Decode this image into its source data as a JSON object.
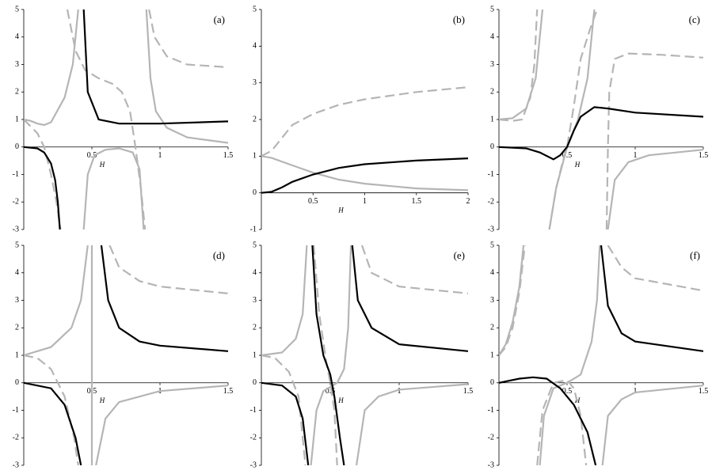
{
  "chart_data": [
    {
      "type": "line",
      "label": "(a)",
      "xlabel": "H",
      "xlim": [
        0,
        1.5
      ],
      "ylim": [
        -3,
        5
      ],
      "xticks": [
        0.5,
        1,
        1.5
      ],
      "yticks": [
        -3,
        -2,
        -1,
        0,
        1,
        2,
        3,
        4,
        5
      ],
      "series": [
        {
          "color": "#b5b5b5",
          "dash": false,
          "x": [
            0,
            0.05,
            0.1,
            0.15,
            0.2,
            0.3,
            0.36,
            0.4,
            null,
            0.44,
            0.47,
            0.52,
            0.6,
            0.7,
            0.8,
            0.85,
            0.88,
            null,
            0.9,
            0.93,
            0.97,
            1.05,
            1.2,
            1.5
          ],
          "values": [
            1,
            0.95,
            0.85,
            0.8,
            0.9,
            1.8,
            3,
            5,
            null,
            -3,
            -1,
            -0.3,
            -0.1,
            -0.05,
            -0.2,
            -0.8,
            -3,
            null,
            5,
            2.5,
            1.3,
            0.7,
            0.35,
            0.15
          ]
        },
        {
          "color": "#b5b5b5",
          "dash": true,
          "x": [
            0,
            0.1,
            0.15,
            0.2,
            0.24,
            0.27,
            null,
            0.32,
            0.38,
            0.45,
            0.55,
            0.65,
            0.72,
            0.78,
            0.82,
            0.86,
            0.89,
            null,
            0.92,
            0.96,
            1.05,
            1.2,
            1.5
          ],
          "values": [
            1,
            0.5,
            0,
            -1,
            -2,
            -3,
            null,
            5,
            3.5,
            2.8,
            2.5,
            2.3,
            2,
            1.3,
            0,
            -1.5,
            -3,
            null,
            5,
            4,
            3.3,
            3,
            2.9
          ]
        },
        {
          "color": "#000000",
          "dash": false,
          "x": [
            0,
            0.1,
            0.15,
            0.2,
            0.23,
            0.25,
            0.265,
            null,
            0.44,
            0.47,
            0.55,
            0.7,
            1,
            1.5
          ],
          "values": [
            0,
            -0.05,
            -0.2,
            -0.6,
            -1.2,
            -2,
            -3,
            null,
            5,
            2,
            1,
            0.85,
            0.85,
            0.93
          ]
        }
      ]
    },
    {
      "type": "line",
      "label": "(b)",
      "xlabel": "H",
      "xlim": [
        0,
        2
      ],
      "ylim": [
        -1,
        5
      ],
      "xticks": [
        0.5,
        1,
        1.5,
        2
      ],
      "yticks": [
        -1,
        0,
        1,
        2,
        3,
        4,
        5
      ],
      "series": [
        {
          "color": "#b5b5b5",
          "dash": false,
          "x": [
            0,
            0.1,
            0.25,
            0.5,
            0.75,
            1,
            1.5,
            2
          ],
          "values": [
            1,
            0.95,
            0.8,
            0.55,
            0.36,
            0.25,
            0.12,
            0.07
          ]
        },
        {
          "color": "#b5b5b5",
          "dash": true,
          "x": [
            0,
            0.1,
            0.2,
            0.3,
            0.5,
            0.75,
            1,
            1.5,
            2
          ],
          "values": [
            1,
            1.15,
            1.5,
            1.85,
            2.15,
            2.4,
            2.55,
            2.75,
            2.88
          ]
        },
        {
          "color": "#000000",
          "dash": false,
          "x": [
            0,
            0.1,
            0.2,
            0.3,
            0.5,
            0.75,
            1,
            1.5,
            2
          ],
          "values": [
            0,
            0.03,
            0.15,
            0.3,
            0.5,
            0.68,
            0.78,
            0.88,
            0.94
          ]
        }
      ]
    },
    {
      "type": "line",
      "label": "(c)",
      "xlabel": "H",
      "xlim": [
        0,
        1.5
      ],
      "ylim": [
        -3,
        5
      ],
      "xticks": [
        0.5,
        1,
        1.5
      ],
      "yticks": [
        -3,
        -2,
        -1,
        0,
        1,
        2,
        3,
        4,
        5
      ],
      "series": [
        {
          "color": "#b5b5b5",
          "dash": false,
          "x": [
            0,
            0.1,
            0.2,
            0.27,
            0.32,
            null,
            0.37,
            0.42,
            0.5,
            0.58,
            0.65,
            0.7,
            null,
            0.8,
            0.85,
            0.95,
            1.1,
            1.5
          ],
          "values": [
            1,
            1.05,
            1.4,
            2.5,
            5,
            null,
            -3,
            -1.5,
            0,
            1,
            2.5,
            5,
            null,
            -3,
            -1.2,
            -0.55,
            -0.3,
            -0.1
          ]
        },
        {
          "color": "#b5b5b5",
          "dash": true,
          "x": [
            0,
            0.1,
            0.17,
            0.23,
            0.26,
            0.28,
            null,
            0.37,
            0.42,
            0.47,
            0.5,
            0.55,
            0.6,
            0.67,
            0.72,
            null,
            0.79,
            0.8,
            0.81,
            0.85,
            0.95,
            1.2,
            1.5
          ],
          "values": [
            1,
            0.95,
            1,
            1.8,
            3,
            5,
            null,
            -3,
            -1.5,
            -0.5,
            0,
            1.5,
            3.2,
            4.3,
            5,
            null,
            -3,
            0,
            2,
            3.2,
            3.4,
            3.35,
            3.25
          ]
        },
        {
          "color": "#000000",
          "dash": false,
          "x": [
            0,
            0.2,
            0.3,
            0.4,
            0.45,
            0.5,
            0.55,
            0.6,
            0.7,
            0.8,
            1,
            1.5
          ],
          "values": [
            0,
            -0.05,
            -0.2,
            -0.45,
            -0.3,
            0,
            0.6,
            1.1,
            1.45,
            1.4,
            1.25,
            1.1
          ]
        }
      ]
    },
    {
      "type": "line",
      "label": "(d)",
      "xlabel": "H",
      "xlim": [
        0,
        1.5
      ],
      "ylim": [
        -3,
        5
      ],
      "xticks": [
        0.5,
        1,
        1.5
      ],
      "yticks": [
        -3,
        -2,
        -1,
        0,
        1,
        2,
        3,
        4,
        5
      ],
      "series": [
        {
          "color": "#b5b5b5",
          "dash": false,
          "x": [
            0,
            0.2,
            0.35,
            0.42,
            0.47,
            null,
            0.5,
            0.5,
            null,
            0.53,
            0.6,
            0.7,
            1,
            1.5
          ],
          "values": [
            1,
            1.3,
            2,
            3,
            5,
            null,
            -3,
            5,
            null,
            -3,
            -1.3,
            -0.7,
            -0.3,
            -0.1
          ]
        },
        {
          "color": "#b5b5b5",
          "dash": true,
          "x": [
            0,
            0.1,
            0.2,
            0.3,
            0.37,
            0.4,
            null,
            0.63,
            0.7,
            0.85,
            1,
            1.5
          ],
          "values": [
            1,
            0.9,
            0.5,
            -0.5,
            -2,
            -3,
            null,
            5,
            4.2,
            3.7,
            3.5,
            3.25
          ]
        },
        {
          "color": "#000000",
          "dash": false,
          "x": [
            0,
            0.2,
            0.3,
            0.38,
            0.42,
            null,
            0.57,
            0.62,
            0.7,
            0.85,
            1,
            1.5
          ],
          "values": [
            0,
            -0.2,
            -0.8,
            -2,
            -3,
            null,
            5,
            3,
            2,
            1.5,
            1.35,
            1.15
          ]
        }
      ]
    },
    {
      "type": "line",
      "label": "(e)",
      "xlabel": "H",
      "xlim": [
        0,
        1.5
      ],
      "ylim": [
        -3,
        5
      ],
      "xticks": [
        0.5,
        1,
        1.5
      ],
      "yticks": [
        -3,
        -2,
        -1,
        0,
        1,
        2,
        3,
        4,
        5
      ],
      "series": [
        {
          "color": "#b5b5b5",
          "dash": false,
          "x": [
            0,
            0.15,
            0.25,
            0.3,
            0.33,
            null,
            0.36,
            0.4,
            0.45,
            0.55,
            0.6,
            0.63,
            0.65,
            null,
            0.69,
            0.75,
            0.85,
            1,
            1.5
          ],
          "values": [
            1,
            1.1,
            1.6,
            2.5,
            5,
            null,
            -3,
            -1,
            -0.3,
            0,
            0.5,
            2,
            5,
            null,
            -3,
            -1,
            -0.5,
            -0.25,
            -0.05
          ]
        },
        {
          "color": "#b5b5b5",
          "dash": true,
          "x": [
            0,
            0.1,
            0.2,
            0.27,
            0.32,
            null,
            0.38,
            0.42,
            0.47,
            0.5,
            0.53,
            0.55,
            null,
            0.73,
            0.8,
            1,
            1.5
          ],
          "values": [
            1,
            0.9,
            0.4,
            -0.5,
            -3,
            null,
            5,
            2.5,
            0.8,
            0,
            -1,
            -3,
            null,
            5,
            4,
            3.5,
            3.25
          ]
        },
        {
          "color": "#000000",
          "dash": false,
          "x": [
            0,
            0.15,
            0.25,
            0.3,
            0.34,
            null,
            0.37,
            0.4,
            0.45,
            0.5,
            0.53,
            0.57,
            0.6,
            null,
            0.66,
            0.7,
            0.8,
            1,
            1.5
          ],
          "values": [
            0,
            -0.1,
            -0.5,
            -1.3,
            -3,
            null,
            5,
            2.5,
            1,
            0.3,
            -0.5,
            -2,
            -3,
            null,
            5,
            3,
            2,
            1.4,
            1.15
          ]
        }
      ]
    },
    {
      "type": "line",
      "label": "(f)",
      "xlabel": "H",
      "xlim": [
        0,
        1.5
      ],
      "ylim": [
        -3,
        5
      ],
      "xticks": [
        0.5,
        1,
        1.5
      ],
      "yticks": [
        -3,
        -2,
        -1,
        0,
        1,
        2,
        3,
        4,
        5
      ],
      "series": [
        {
          "color": "#b5b5b5",
          "dash": false,
          "x": [
            0,
            0.05,
            0.1,
            0.15,
            0.18,
            null,
            0.3,
            0.33,
            0.4,
            0.5,
            0.6,
            0.68,
            0.72,
            0.74,
            null,
            0.76,
            0.8,
            0.9,
            1,
            1.5
          ],
          "values": [
            1,
            1.4,
            2.2,
            3.5,
            5,
            null,
            -3,
            -1.2,
            -0.2,
            0,
            0.3,
            1.5,
            3,
            5,
            null,
            -3,
            -1.2,
            -0.6,
            -0.35,
            -0.1
          ]
        },
        {
          "color": "#b5b5b5",
          "dash": true,
          "x": [
            0,
            0.05,
            0.1,
            0.15,
            0.19,
            null,
            0.28,
            0.32,
            0.4,
            0.5,
            0.55,
            0.6,
            0.64,
            null,
            0.8,
            0.9,
            1,
            1.5
          ],
          "values": [
            1,
            1.3,
            2,
            3.3,
            5,
            null,
            -3,
            -1,
            0,
            0.1,
            -0.2,
            -1.2,
            -3,
            null,
            5,
            4.2,
            3.8,
            3.35
          ]
        },
        {
          "color": "#000000",
          "dash": false,
          "x": [
            0,
            0.15,
            0.25,
            0.35,
            0.45,
            0.55,
            0.65,
            0.71,
            null,
            0.75,
            0.8,
            0.9,
            1,
            1.5
          ],
          "values": [
            0,
            0.15,
            0.2,
            0.15,
            -0.2,
            -0.8,
            -1.8,
            -3,
            null,
            5,
            2.8,
            1.8,
            1.5,
            1.15
          ]
        }
      ]
    }
  ]
}
